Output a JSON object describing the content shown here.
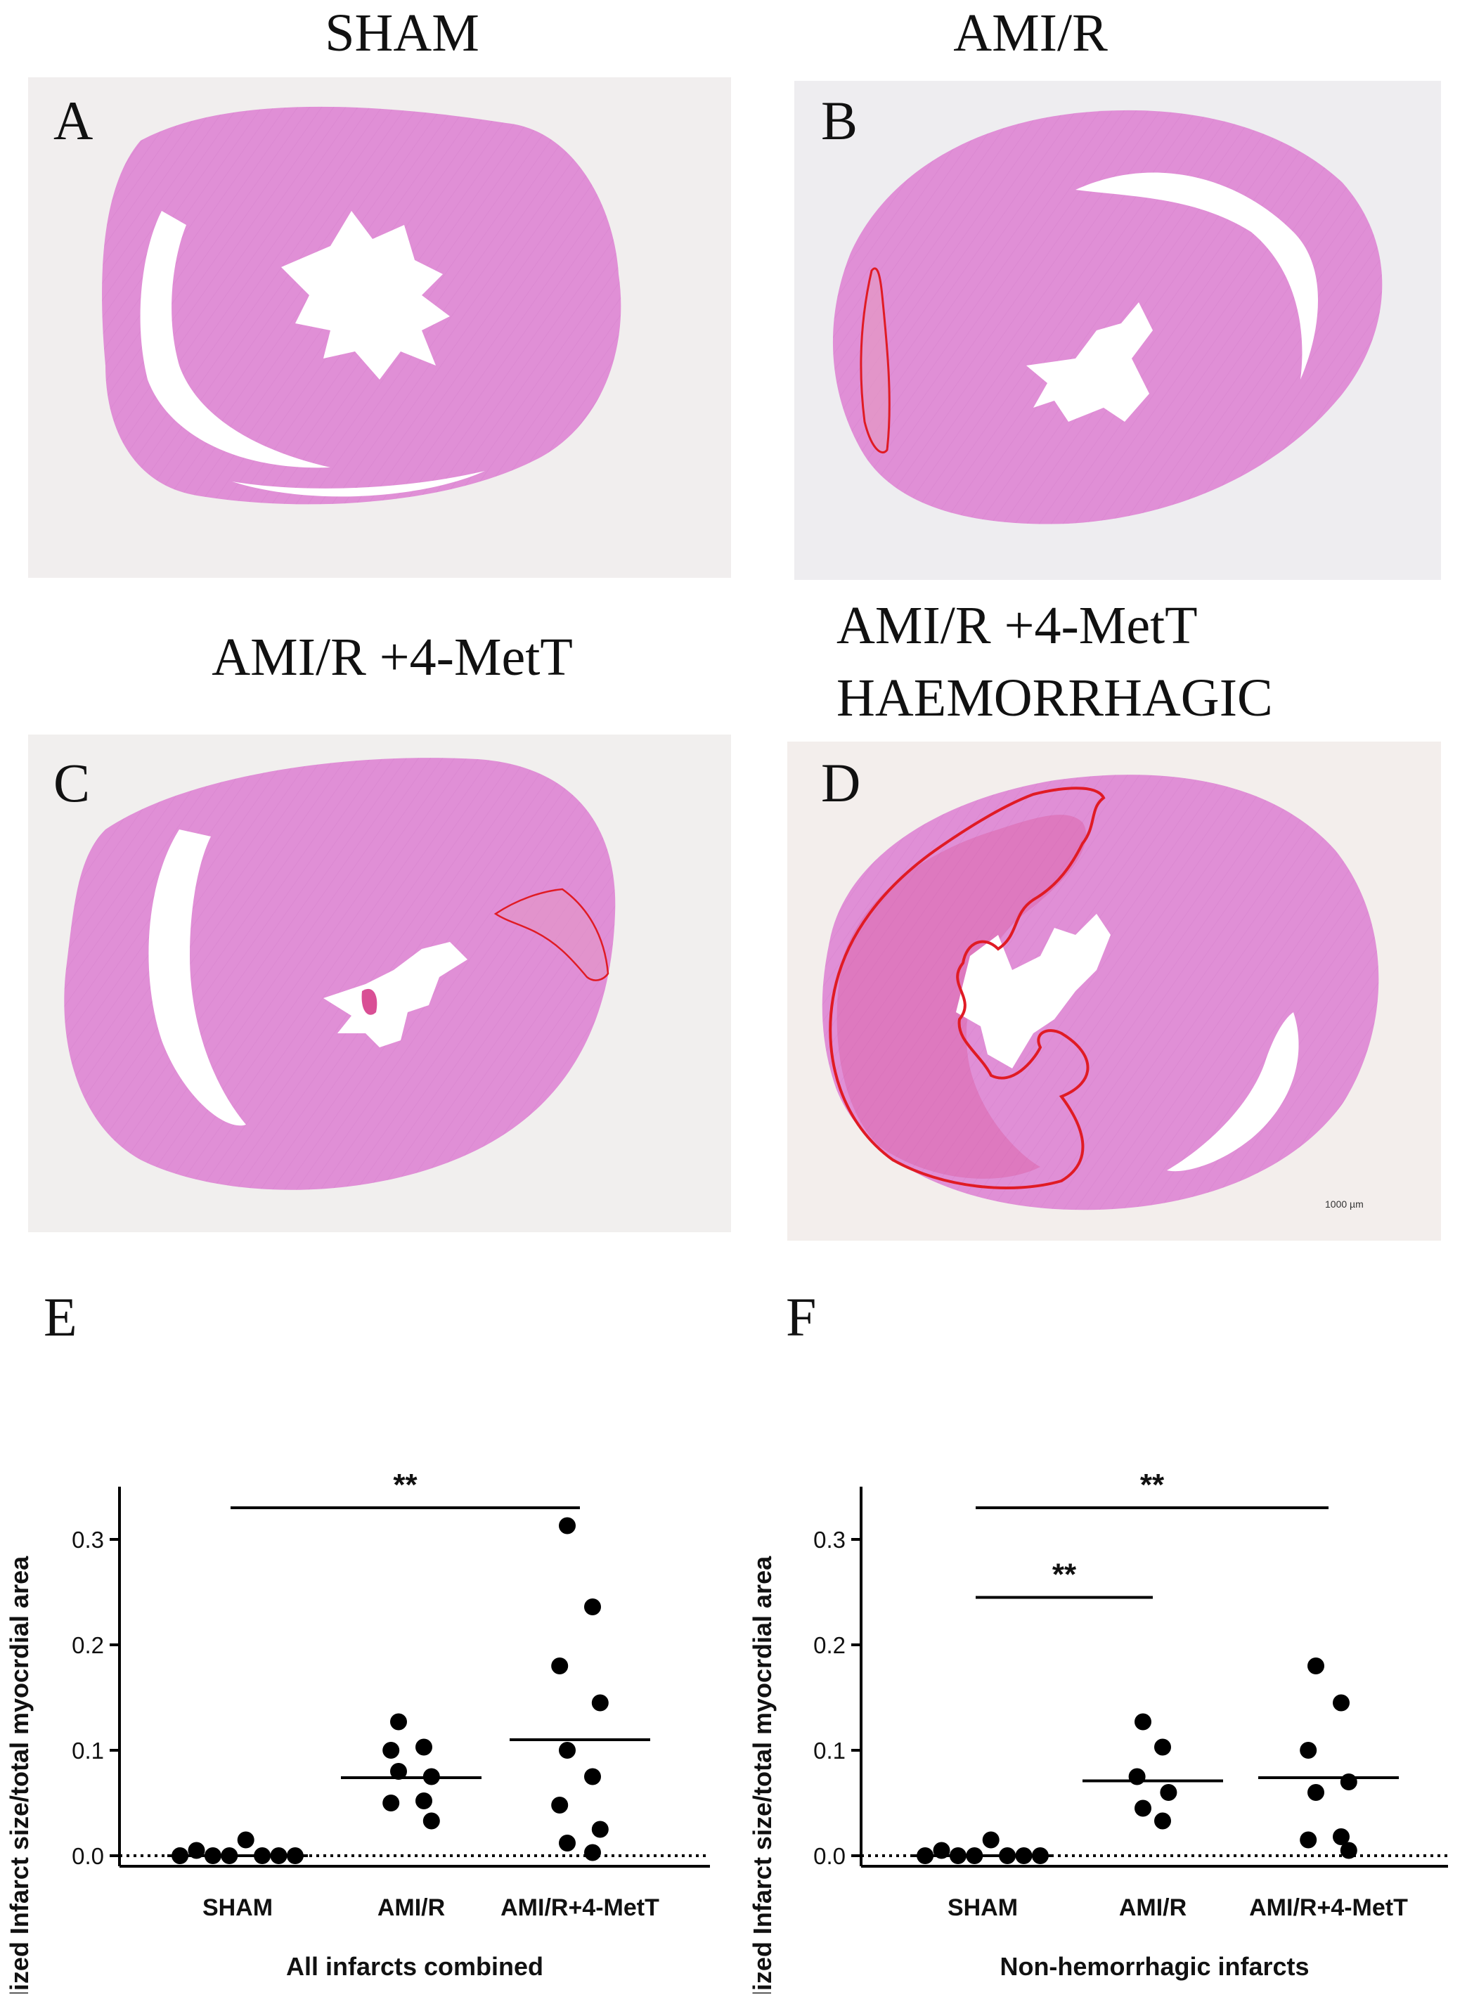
{
  "panels": {
    "A": {
      "letter": "A",
      "title_lines": [
        "SHAM"
      ]
    },
    "B": {
      "letter": "B",
      "title_lines": [
        "AMI/R"
      ]
    },
    "C": {
      "letter": "C",
      "title_lines": [
        "AMI/R +4-MetT"
      ]
    },
    "D": {
      "letter": "D",
      "title_lines": [
        "AMI/R +4-MetT",
        "HAEMORRHAGIC"
      ],
      "scale_bar": "1000 µm"
    }
  },
  "colors": {
    "tissue": "#e08fd6",
    "tissue_dark": "#d57bcc",
    "slide_bg": "#f3efec",
    "infarct_outline": "#e01b24",
    "haemorrhage": "#d94f95"
  },
  "chart_data": [
    {
      "panel": "E",
      "type": "scatter",
      "ylabel": "Normalized Infarct size/total myocrdial area",
      "xlabel": "All infarcts combined",
      "categories": [
        "SHAM",
        "AMI/R",
        "AMI/R+4-MetT"
      ],
      "ylim": [
        -0.01,
        0.35
      ],
      "yticks": [
        "0.0",
        "0.1",
        "0.2",
        "0.3"
      ],
      "baseline": 0.0,
      "series": [
        {
          "category": "SHAM",
          "values": [
            0.0,
            0.005,
            0.0,
            0.0,
            0.015,
            0.0,
            0.0,
            0.0
          ],
          "mean": 0.0
        },
        {
          "category": "AMI/R",
          "values": [
            0.127,
            0.103,
            0.1,
            0.075,
            0.08,
            0.052,
            0.05,
            0.033
          ],
          "mean": 0.074
        },
        {
          "category": "AMI/R+4-MetT",
          "values": [
            0.313,
            0.236,
            0.18,
            0.145,
            0.1,
            0.075,
            0.048,
            0.025,
            0.012,
            0.003
          ],
          "mean": 0.11
        }
      ],
      "significance": [
        {
          "from": "SHAM",
          "to": "AMI/R+4-MetT",
          "label": "**",
          "y": 0.33
        }
      ]
    },
    {
      "panel": "F",
      "type": "scatter",
      "ylabel": "Normalized Infarct size/total myocrdial area",
      "xlabel": "Non-hemorrhagic infarcts",
      "categories": [
        "SHAM",
        "AMI/R",
        "AMI/R+4-MetT"
      ],
      "ylim": [
        -0.01,
        0.35
      ],
      "yticks": [
        "0.0",
        "0.1",
        "0.2",
        "0.3"
      ],
      "baseline": 0.0,
      "series": [
        {
          "category": "SHAM",
          "values": [
            0.0,
            0.005,
            0.0,
            0.0,
            0.015,
            0.0,
            0.0,
            0.0
          ],
          "mean": 0.0
        },
        {
          "category": "AMI/R",
          "values": [
            0.127,
            0.103,
            0.075,
            0.06,
            0.045,
            0.033
          ],
          "mean": 0.071
        },
        {
          "category": "AMI/R+4-MetT",
          "values": [
            0.18,
            0.145,
            0.1,
            0.07,
            0.06,
            0.018,
            0.015,
            0.005
          ],
          "mean": 0.074
        }
      ],
      "significance": [
        {
          "from": "SHAM",
          "to": "AMI/R+4-MetT",
          "label": "**",
          "y": 0.33
        },
        {
          "from": "SHAM",
          "to": "AMI/R",
          "label": "**",
          "y": 0.245
        }
      ]
    }
  ]
}
